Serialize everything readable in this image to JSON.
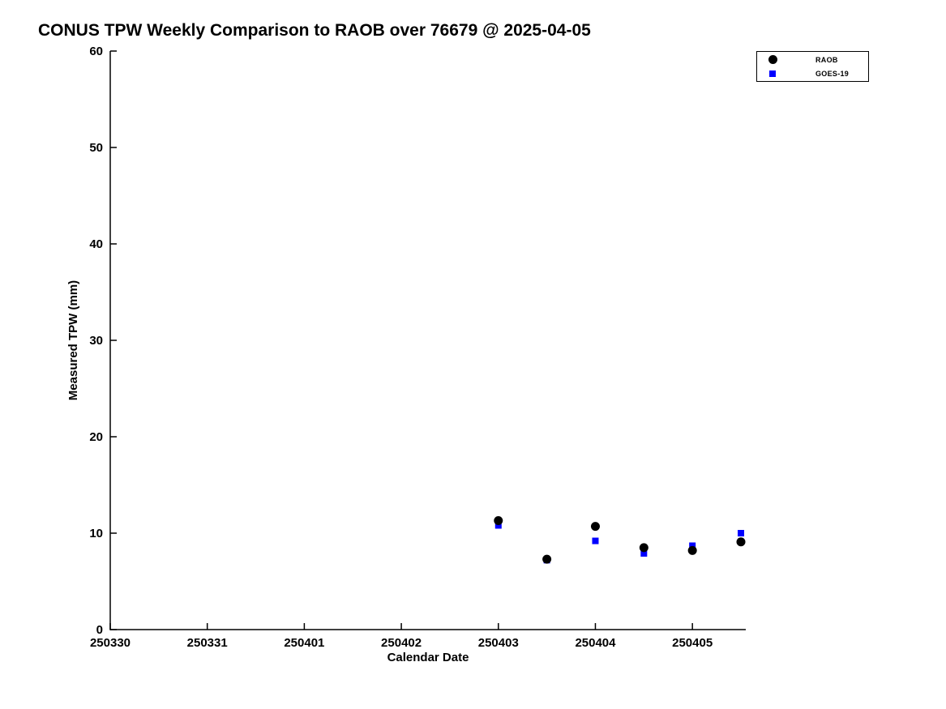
{
  "chart_data": {
    "type": "scatter",
    "title": "CONUS TPW Weekly Comparison to RAOB over 76679 @ 2025-04-05",
    "xlabel": "Calendar Date",
    "ylabel": "Measured TPW (mm)",
    "x_tick_labels": [
      "250330",
      "250331",
      "250401",
      "250402",
      "250403",
      "250404",
      "250405"
    ],
    "x_tick_values": [
      0,
      1,
      2,
      3,
      4,
      5,
      6
    ],
    "xlim": [
      0,
      6.55
    ],
    "y_ticks": [
      0,
      10,
      20,
      30,
      40,
      50,
      60
    ],
    "ylim": [
      0,
      60
    ],
    "grid": false,
    "legend_position": "top-right",
    "axis_color": "#000000",
    "background_color": "#ffffff",
    "series": [
      {
        "name": "RAOB",
        "marker": "circle",
        "color": "#000000",
        "x": [
          4.0,
          4.5,
          5.0,
          5.5,
          6.0,
          6.5
        ],
        "y": [
          11.3,
          7.3,
          10.7,
          8.5,
          8.2,
          9.1
        ]
      },
      {
        "name": "GOES-19",
        "marker": "square",
        "color": "#0000ff",
        "x": [
          4.0,
          4.5,
          5.0,
          5.5,
          6.0,
          6.5
        ],
        "y": [
          10.8,
          7.2,
          9.2,
          7.9,
          8.7,
          10.0
        ]
      }
    ]
  }
}
